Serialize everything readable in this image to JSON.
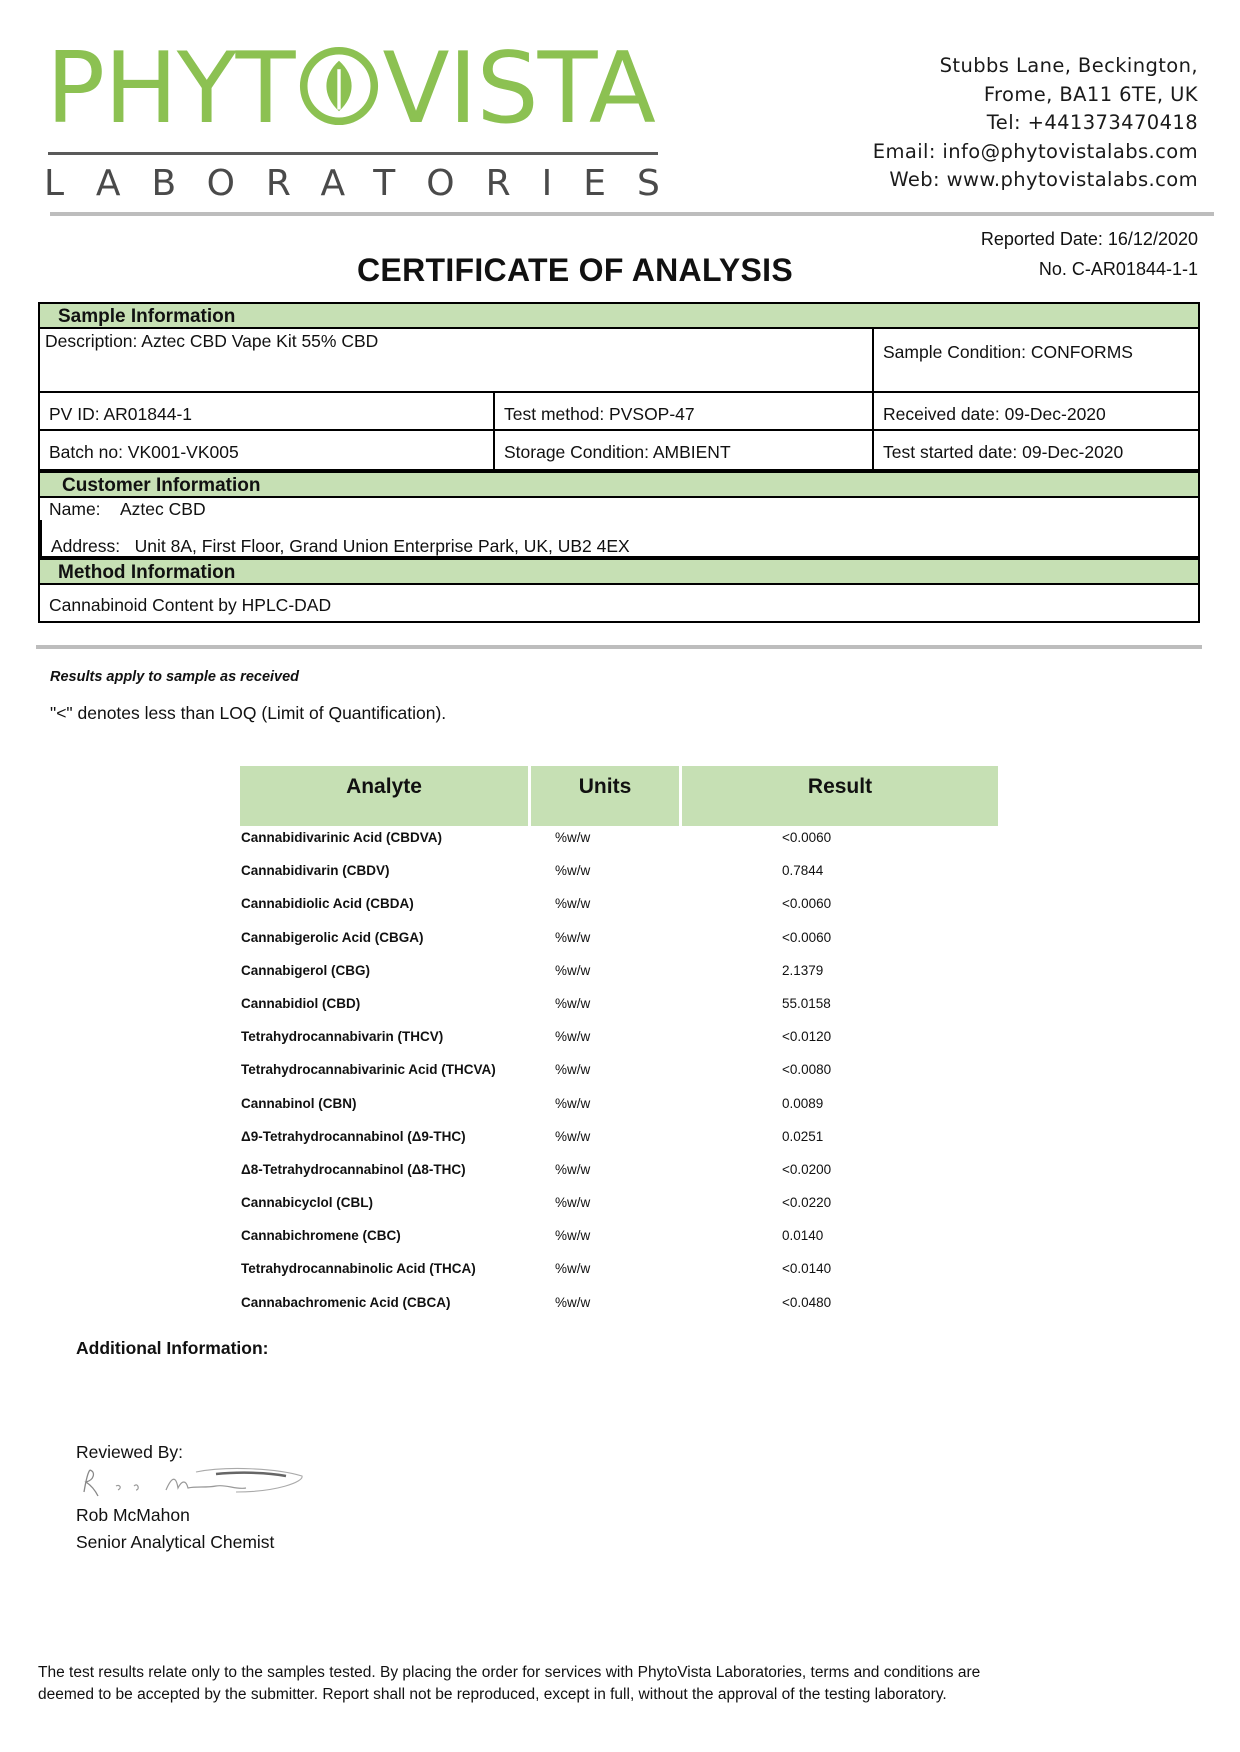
{
  "logo": {
    "name_left": "PHYT",
    "name_right": "VISTA",
    "subtitle": "LABORATORIES",
    "brand_color": "#8cc152",
    "leaf_icon": "leaf-circle-icon"
  },
  "address": {
    "line1": "Stubbs Lane, Beckington,",
    "line2": "Frome, BA11 6TE, UK",
    "tel": "Tel: +441373470418",
    "email": "Email: info@phytovistalabs.com",
    "web": "Web: www.phytovistalabs.com"
  },
  "report": {
    "reported_date": "Reported Date: 16/12/2020",
    "number": "No. C-AR01844-1-1",
    "title": "CERTIFICATE OF ANALYSIS"
  },
  "sample": {
    "heading": "Sample Information",
    "description": "Description: Aztec CBD Vape Kit 55% CBD",
    "condition": "Sample Condition: CONFORMS",
    "pv_id": "PV ID: AR01844-1",
    "test_method": "Test method: PVSOP-47",
    "received_date": "Received date: 09-Dec-2020",
    "batch_no": "Batch no: VK001-VK005",
    "storage": "Storage Condition: AMBIENT",
    "test_started": "Test started date: 09-Dec-2020"
  },
  "customer": {
    "heading": "Customer Information",
    "name_label": "Name:",
    "name_value": "Aztec CBD",
    "address_label": "Address:",
    "address_value": "Unit 8A, First Floor, Grand Union Enterprise Park, UK, UB2 4EX"
  },
  "method": {
    "heading": "Method Information",
    "value": "Cannabinoid Content by HPLC-DAD"
  },
  "notes": {
    "results_apply": "Results apply to sample as received",
    "loq": "\"<\" denotes less than LOQ (Limit of Quantification)."
  },
  "results": {
    "headers": {
      "analyte": "Analyte",
      "units": "Units",
      "result": "Result"
    },
    "rows": [
      {
        "analyte": "Cannabidivarinic Acid (CBDVA)",
        "units": "%w/w",
        "result": "<0.0060"
      },
      {
        "analyte": "Cannabidivarin (CBDV)",
        "units": "%w/w",
        "result": "0.7844"
      },
      {
        "analyte": "Cannabidiolic Acid (CBDA)",
        "units": "%w/w",
        "result": "<0.0060"
      },
      {
        "analyte": "Cannabigerolic Acid (CBGA)",
        "units": "%w/w",
        "result": "<0.0060"
      },
      {
        "analyte": "Cannabigerol (CBG)",
        "units": "%w/w",
        "result": "2.1379"
      },
      {
        "analyte": "Cannabidiol (CBD)",
        "units": "%w/w",
        "result": "55.0158"
      },
      {
        "analyte": "Tetrahydrocannabivarin (THCV)",
        "units": "%w/w",
        "result": "<0.0120"
      },
      {
        "analyte": "Tetrahydrocannabivarinic Acid (THCVA)",
        "units": "%w/w",
        "result": "<0.0080"
      },
      {
        "analyte": "Cannabinol (CBN)",
        "units": "%w/w",
        "result": "0.0089"
      },
      {
        "analyte": "Δ9-Tetrahydrocannabinol (Δ9-THC)",
        "units": "%w/w",
        "result": "0.0251"
      },
      {
        "analyte": "Δ8-Tetrahydrocannabinol (Δ8-THC)",
        "units": "%w/w",
        "result": "<0.0200"
      },
      {
        "analyte": "Cannabicyclol (CBL)",
        "units": "%w/w",
        "result": "<0.0220"
      },
      {
        "analyte": "Cannabichromene (CBC)",
        "units": "%w/w",
        "result": "0.0140"
      },
      {
        "analyte": "Tetrahydrocannabinolic Acid (THCA)",
        "units": "%w/w",
        "result": "<0.0140"
      },
      {
        "analyte": "Cannabachromenic Acid (CBCA)",
        "units": "%w/w",
        "result": "<0.0480"
      }
    ]
  },
  "additional": {
    "label": "Additional Information:"
  },
  "review": {
    "label": "Reviewed By:",
    "name": "Rob McMahon",
    "role": "Senior Analytical Chemist"
  },
  "footer": {
    "line1": "The test results relate only to the samples tested.  By placing the order for services with PhytoVista Laboratories, terms and conditions are",
    "line2": "deemed to be accepted by the submitter. Report shall not be reproduced, except in full, without the approval of the testing laboratory."
  }
}
